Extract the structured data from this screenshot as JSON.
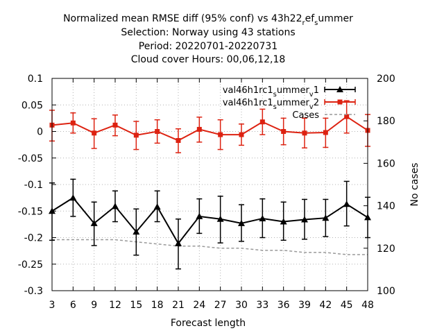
{
  "chart_data": {
    "type": "line",
    "title_lines": [
      "Normalized mean RMSE diff (95% conf) vs 43h22",
      "Selection: Norway using    43 stations",
      "Period: 20220701-20220731",
      "Cloud cover   Hours:  00,06,12,18"
    ],
    "title_suffix": {
      "sub1": "r",
      "mid": "ef",
      "sub2": "s",
      "end": "ummer"
    },
    "xlabel": "Forecast length",
    "ylabel": "",
    "y2label": "No cases",
    "x": [
      3,
      6,
      9,
      12,
      15,
      18,
      21,
      24,
      27,
      30,
      33,
      36,
      39,
      42,
      45,
      48
    ],
    "xlim": [
      3,
      48
    ],
    "ylim": [
      -0.3,
      0.1
    ],
    "y2lim": [
      100,
      200
    ],
    "yticks": [
      "0.1",
      "0.05",
      "0",
      "-0.05",
      "-0.1",
      "-0.15",
      "-0.2",
      "-0.25",
      "-0.3"
    ],
    "y2ticks": [
      "200",
      "180",
      "160",
      "140",
      "120",
      "100"
    ],
    "grid": true,
    "legend_position": "top-right",
    "series": [
      {
        "name": "val46h1rc1_summer_v1",
        "label_parts": {
          "a": "val46h1rc1",
          "s1": "s",
          "b": "ummer",
          "s2": "v",
          "c": "1"
        },
        "color": "#000000",
        "marker": "triangle",
        "values": [
          -0.15,
          -0.125,
          -0.173,
          -0.141,
          -0.189,
          -0.142,
          -0.211,
          -0.16,
          -0.165,
          -0.173,
          -0.164,
          -0.17,
          -0.166,
          -0.163,
          -0.137,
          -0.162
        ],
        "err_low": [
          -0.205,
          -0.16,
          -0.215,
          -0.17,
          -0.233,
          -0.17,
          -0.259,
          -0.192,
          -0.21,
          -0.207,
          -0.2,
          -0.205,
          -0.203,
          -0.198,
          -0.178,
          -0.2
        ],
        "err_high": [
          -0.097,
          -0.09,
          -0.133,
          -0.112,
          -0.146,
          -0.112,
          -0.165,
          -0.127,
          -0.122,
          -0.138,
          -0.127,
          -0.133,
          -0.128,
          -0.128,
          -0.094,
          -0.124
        ]
      },
      {
        "name": "val46h1rc1_summer_v2",
        "label_parts": {
          "a": "val46h1rc1",
          "s1": "s",
          "b": "ummer",
          "s2": "v",
          "c": "2"
        },
        "color": "#dd2211",
        "marker": "square",
        "values": [
          0.012,
          0.016,
          -0.003,
          0.012,
          -0.007,
          0.0,
          -0.017,
          0.004,
          -0.006,
          -0.006,
          0.018,
          0.0,
          -0.003,
          -0.002,
          0.028,
          0.002
        ],
        "err_low": [
          -0.018,
          -0.003,
          -0.032,
          -0.008,
          -0.034,
          -0.022,
          -0.04,
          -0.02,
          -0.034,
          -0.026,
          -0.006,
          -0.025,
          -0.031,
          -0.03,
          -0.003,
          -0.028
        ],
        "err_high": [
          0.04,
          0.035,
          0.024,
          0.031,
          0.019,
          0.022,
          0.005,
          0.027,
          0.022,
          0.014,
          0.042,
          0.025,
          0.025,
          0.025,
          0.058,
          0.032
        ]
      },
      {
        "name": "Cases",
        "color": "#999999",
        "axis": "y2",
        "style": "dashed",
        "values": [
          124,
          124,
          124,
          124,
          123,
          122,
          121,
          121,
          120,
          120,
          119,
          119,
          118,
          118,
          117,
          117
        ]
      }
    ]
  }
}
